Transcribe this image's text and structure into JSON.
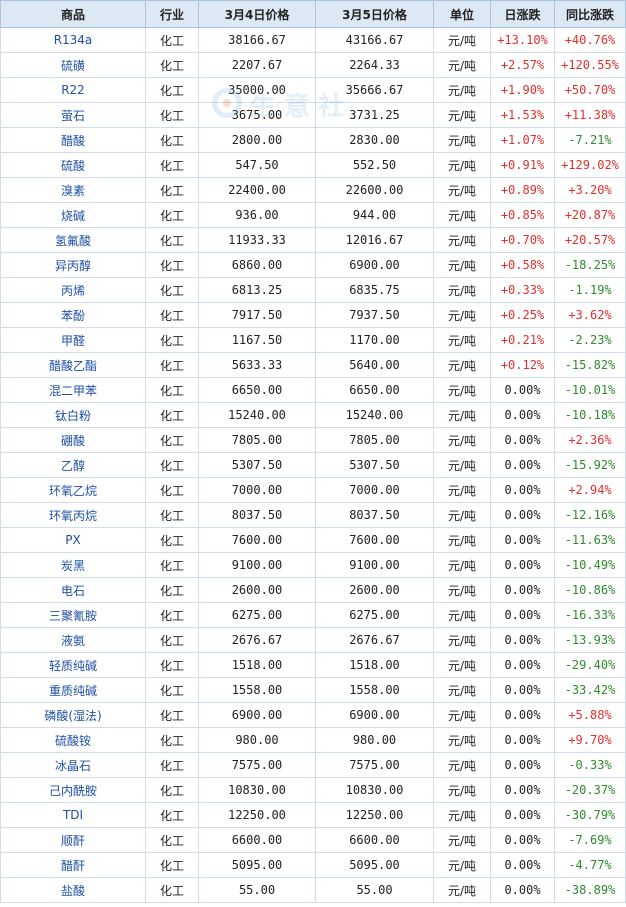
{
  "columns": [
    "商品",
    "行业",
    "3月4日价格",
    "3月5日价格",
    "单位",
    "日涨跌",
    "同比涨跌"
  ],
  "colors": {
    "header_bg": "#dde8f5",
    "border": "#cfdced",
    "name_link": "#1f4fa6",
    "up": "#e0302e",
    "down": "#2e8b2e",
    "flat": "#222222"
  },
  "watermark": {
    "text": "生意社",
    "icon": "shengyishe-logo-icon"
  },
  "rows": [
    {
      "name": "R134a",
      "industry": "化工",
      "price_prev": "38166.67",
      "price_curr": "43166.67",
      "unit": "元/吨",
      "daily_change": "+13.10%",
      "yoy_change": "+40.76%"
    },
    {
      "name": "硫磺",
      "industry": "化工",
      "price_prev": "2207.67",
      "price_curr": "2264.33",
      "unit": "元/吨",
      "daily_change": "+2.57%",
      "yoy_change": "+120.55%"
    },
    {
      "name": "R22",
      "industry": "化工",
      "price_prev": "35000.00",
      "price_curr": "35666.67",
      "unit": "元/吨",
      "daily_change": "+1.90%",
      "yoy_change": "+50.70%"
    },
    {
      "name": "萤石",
      "industry": "化工",
      "price_prev": "3675.00",
      "price_curr": "3731.25",
      "unit": "元/吨",
      "daily_change": "+1.53%",
      "yoy_change": "+11.38%"
    },
    {
      "name": "醋酸",
      "industry": "化工",
      "price_prev": "2800.00",
      "price_curr": "2830.00",
      "unit": "元/吨",
      "daily_change": "+1.07%",
      "yoy_change": "-7.21%"
    },
    {
      "name": "硫酸",
      "industry": "化工",
      "price_prev": "547.50",
      "price_curr": "552.50",
      "unit": "元/吨",
      "daily_change": "+0.91%",
      "yoy_change": "+129.02%"
    },
    {
      "name": "溴素",
      "industry": "化工",
      "price_prev": "22400.00",
      "price_curr": "22600.00",
      "unit": "元/吨",
      "daily_change": "+0.89%",
      "yoy_change": "+3.20%"
    },
    {
      "name": "烧碱",
      "industry": "化工",
      "price_prev": "936.00",
      "price_curr": "944.00",
      "unit": "元/吨",
      "daily_change": "+0.85%",
      "yoy_change": "+20.87%"
    },
    {
      "name": "氢氟酸",
      "industry": "化工",
      "price_prev": "11933.33",
      "price_curr": "12016.67",
      "unit": "元/吨",
      "daily_change": "+0.70%",
      "yoy_change": "+20.57%"
    },
    {
      "name": "异丙醇",
      "industry": "化工",
      "price_prev": "6860.00",
      "price_curr": "6900.00",
      "unit": "元/吨",
      "daily_change": "+0.58%",
      "yoy_change": "-18.25%"
    },
    {
      "name": "丙烯",
      "industry": "化工",
      "price_prev": "6813.25",
      "price_curr": "6835.75",
      "unit": "元/吨",
      "daily_change": "+0.33%",
      "yoy_change": "-1.19%"
    },
    {
      "name": "苯酚",
      "industry": "化工",
      "price_prev": "7917.50",
      "price_curr": "7937.50",
      "unit": "元/吨",
      "daily_change": "+0.25%",
      "yoy_change": "+3.62%"
    },
    {
      "name": "甲醛",
      "industry": "化工",
      "price_prev": "1167.50",
      "price_curr": "1170.00",
      "unit": "元/吨",
      "daily_change": "+0.21%",
      "yoy_change": "-2.23%"
    },
    {
      "name": "醋酸乙酯",
      "industry": "化工",
      "price_prev": "5633.33",
      "price_curr": "5640.00",
      "unit": "元/吨",
      "daily_change": "+0.12%",
      "yoy_change": "-15.82%"
    },
    {
      "name": "混二甲苯",
      "industry": "化工",
      "price_prev": "6650.00",
      "price_curr": "6650.00",
      "unit": "元/吨",
      "daily_change": "0.00%",
      "yoy_change": "-10.01%"
    },
    {
      "name": "钛白粉",
      "industry": "化工",
      "price_prev": "15240.00",
      "price_curr": "15240.00",
      "unit": "元/吨",
      "daily_change": "0.00%",
      "yoy_change": "-10.18%"
    },
    {
      "name": "硼酸",
      "industry": "化工",
      "price_prev": "7805.00",
      "price_curr": "7805.00",
      "unit": "元/吨",
      "daily_change": "0.00%",
      "yoy_change": "+2.36%"
    },
    {
      "name": "乙醇",
      "industry": "化工",
      "price_prev": "5307.50",
      "price_curr": "5307.50",
      "unit": "元/吨",
      "daily_change": "0.00%",
      "yoy_change": "-15.92%"
    },
    {
      "name": "环氧乙烷",
      "industry": "化工",
      "price_prev": "7000.00",
      "price_curr": "7000.00",
      "unit": "元/吨",
      "daily_change": "0.00%",
      "yoy_change": "+2.94%"
    },
    {
      "name": "环氧丙烷",
      "industry": "化工",
      "price_prev": "8037.50",
      "price_curr": "8037.50",
      "unit": "元/吨",
      "daily_change": "0.00%",
      "yoy_change": "-12.16%"
    },
    {
      "name": "PX",
      "industry": "化工",
      "price_prev": "7600.00",
      "price_curr": "7600.00",
      "unit": "元/吨",
      "daily_change": "0.00%",
      "yoy_change": "-11.63%"
    },
    {
      "name": "炭黑",
      "industry": "化工",
      "price_prev": "9100.00",
      "price_curr": "9100.00",
      "unit": "元/吨",
      "daily_change": "0.00%",
      "yoy_change": "-10.49%"
    },
    {
      "name": "电石",
      "industry": "化工",
      "price_prev": "2600.00",
      "price_curr": "2600.00",
      "unit": "元/吨",
      "daily_change": "0.00%",
      "yoy_change": "-10.86%"
    },
    {
      "name": "三聚氰胺",
      "industry": "化工",
      "price_prev": "6275.00",
      "price_curr": "6275.00",
      "unit": "元/吨",
      "daily_change": "0.00%",
      "yoy_change": "-16.33%"
    },
    {
      "name": "液氨",
      "industry": "化工",
      "price_prev": "2676.67",
      "price_curr": "2676.67",
      "unit": "元/吨",
      "daily_change": "0.00%",
      "yoy_change": "-13.93%"
    },
    {
      "name": "轻质纯碱",
      "industry": "化工",
      "price_prev": "1518.00",
      "price_curr": "1518.00",
      "unit": "元/吨",
      "daily_change": "0.00%",
      "yoy_change": "-29.40%"
    },
    {
      "name": "重质纯碱",
      "industry": "化工",
      "price_prev": "1558.00",
      "price_curr": "1558.00",
      "unit": "元/吨",
      "daily_change": "0.00%",
      "yoy_change": "-33.42%"
    },
    {
      "name": "磷酸(湿法)",
      "industry": "化工",
      "price_prev": "6900.00",
      "price_curr": "6900.00",
      "unit": "元/吨",
      "daily_change": "0.00%",
      "yoy_change": "+5.88%"
    },
    {
      "name": "硫酸铵",
      "industry": "化工",
      "price_prev": "980.00",
      "price_curr": "980.00",
      "unit": "元/吨",
      "daily_change": "0.00%",
      "yoy_change": "+9.70%"
    },
    {
      "name": "冰晶石",
      "industry": "化工",
      "price_prev": "7575.00",
      "price_curr": "7575.00",
      "unit": "元/吨",
      "daily_change": "0.00%",
      "yoy_change": "-0.33%"
    },
    {
      "name": "己内酰胺",
      "industry": "化工",
      "price_prev": "10830.00",
      "price_curr": "10830.00",
      "unit": "元/吨",
      "daily_change": "0.00%",
      "yoy_change": "-20.37%"
    },
    {
      "name": "TDI",
      "industry": "化工",
      "price_prev": "12250.00",
      "price_curr": "12250.00",
      "unit": "元/吨",
      "daily_change": "0.00%",
      "yoy_change": "-30.79%"
    },
    {
      "name": "顺酐",
      "industry": "化工",
      "price_prev": "6600.00",
      "price_curr": "6600.00",
      "unit": "元/吨",
      "daily_change": "0.00%",
      "yoy_change": "-7.69%"
    },
    {
      "name": "醋酐",
      "industry": "化工",
      "price_prev": "5095.00",
      "price_curr": "5095.00",
      "unit": "元/吨",
      "daily_change": "0.00%",
      "yoy_change": "-4.77%"
    },
    {
      "name": "盐酸",
      "industry": "化工",
      "price_prev": "55.00",
      "price_curr": "55.00",
      "unit": "元/吨",
      "daily_change": "0.00%",
      "yoy_change": "-38.89%"
    }
  ]
}
